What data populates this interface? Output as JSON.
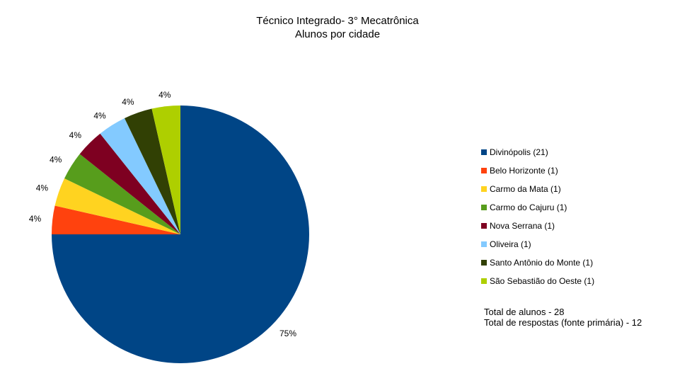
{
  "chart_data": {
    "type": "pie",
    "title": "Técnico Integrado- 3° Mecatrônica",
    "subtitle": "Alunos por cidade",
    "slices": [
      {
        "label": "Divinópolis (21)",
        "value": 21,
        "pct_label": "75%",
        "color": "#004586"
      },
      {
        "label": "Belo Horizonte (1)",
        "value": 1,
        "pct_label": "4%",
        "color": "#ff420e"
      },
      {
        "label": "Carmo da Mata (1)",
        "value": 1,
        "pct_label": "4%",
        "color": "#ffd320"
      },
      {
        "label": "Carmo do Cajuru (1)",
        "value": 1,
        "pct_label": "4%",
        "color": "#579d1c"
      },
      {
        "label": "Nova Serrana (1)",
        "value": 1,
        "pct_label": "4%",
        "color": "#7e0021"
      },
      {
        "label": "Oliveira (1)",
        "value": 1,
        "pct_label": "4%",
        "color": "#83caff"
      },
      {
        "label": "Santo Antônio do Monte (1)",
        "value": 1,
        "pct_label": "4%",
        "color": "#314004"
      },
      {
        "label": "São Sebastião do Oeste (1)",
        "value": 1,
        "pct_label": "4%",
        "color": "#aecf00"
      }
    ],
    "legend_position": "right",
    "notes": [
      "Total de alunos - 28",
      "Total de respostas (fonte primária) - 12"
    ]
  }
}
